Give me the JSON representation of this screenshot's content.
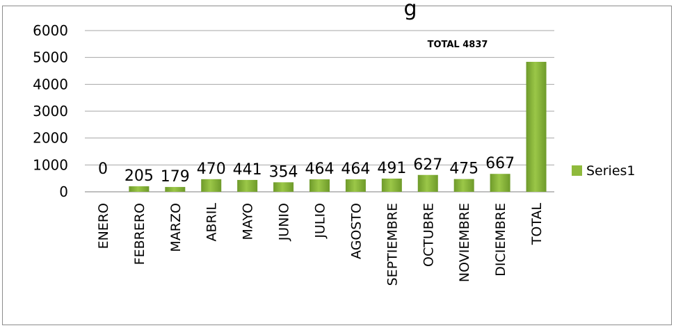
{
  "chart_data": {
    "type": "bar",
    "title": "g",
    "categories": [
      "ENERO",
      "FEBRERO",
      "MARZO",
      "ABRIL",
      "MAYO",
      "JUNIO",
      "JULIO",
      "AGOSTO",
      "SEPTIEMBRE",
      "OCTUBRE",
      "NOVIEMBRE",
      "DICIEMBRE",
      "TOTAL"
    ],
    "series": [
      {
        "name": "Series1",
        "values": [
          0,
          205,
          179,
          470,
          441,
          354,
          464,
          464,
          491,
          627,
          475,
          667,
          4837
        ]
      }
    ],
    "data_labels": [
      "0",
      "205",
      "179",
      "470",
      "441",
      "354",
      "464",
      "464",
      "491",
      "627",
      "475",
      "667"
    ],
    "ylim": [
      0,
      6000
    ],
    "yticks": [
      0,
      1000,
      2000,
      3000,
      4000,
      5000,
      6000
    ],
    "grid": true,
    "legend": "right",
    "annotation": "TOTAL 4837",
    "bar_color": "#8fba3c"
  }
}
